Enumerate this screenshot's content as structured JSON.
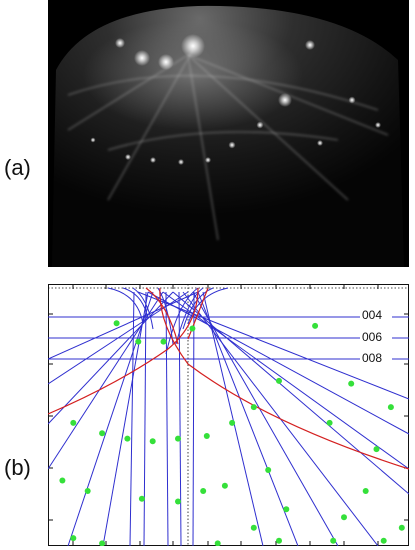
{
  "figure": {
    "panel_a_label": "(a)",
    "panel_b_label": "(b)"
  },
  "colors": {
    "arc_line": "#2f2fcf",
    "red_line": "#d42020",
    "dot": "#35e03a",
    "photo_bg": "#000000"
  },
  "chart_data": {
    "type": "scatter",
    "title": "",
    "xlabel": "",
    "ylabel": "",
    "grid": false,
    "reflection_labels": [
      "004",
      "006",
      "008"
    ],
    "spots": [
      {
        "x": 0.19,
        "y": 0.15
      },
      {
        "x": 0.25,
        "y": 0.22
      },
      {
        "x": 0.32,
        "y": 0.22
      },
      {
        "x": 0.4,
        "y": 0.17
      },
      {
        "x": 0.74,
        "y": 0.16
      },
      {
        "x": 0.64,
        "y": 0.37
      },
      {
        "x": 0.84,
        "y": 0.38
      },
      {
        "x": 0.95,
        "y": 0.47
      },
      {
        "x": 0.57,
        "y": 0.47
      },
      {
        "x": 0.51,
        "y": 0.53
      },
      {
        "x": 0.07,
        "y": 0.53
      },
      {
        "x": 0.15,
        "y": 0.57
      },
      {
        "x": 0.22,
        "y": 0.59
      },
      {
        "x": 0.29,
        "y": 0.6
      },
      {
        "x": 0.36,
        "y": 0.59
      },
      {
        "x": 0.44,
        "y": 0.58
      },
      {
        "x": 0.78,
        "y": 0.53
      },
      {
        "x": 0.91,
        "y": 0.63
      },
      {
        "x": 0.61,
        "y": 0.71
      },
      {
        "x": 0.49,
        "y": 0.77
      },
      {
        "x": 0.43,
        "y": 0.79
      },
      {
        "x": 0.36,
        "y": 0.83
      },
      {
        "x": 0.26,
        "y": 0.82
      },
      {
        "x": 0.11,
        "y": 0.79
      },
      {
        "x": 0.04,
        "y": 0.75
      },
      {
        "x": 0.88,
        "y": 0.79
      },
      {
        "x": 0.66,
        "y": 0.86
      },
      {
        "x": 0.82,
        "y": 0.89
      },
      {
        "x": 0.57,
        "y": 0.93
      },
      {
        "x": 0.98,
        "y": 0.93
      },
      {
        "x": 0.64,
        "y": 0.98
      },
      {
        "x": 0.47,
        "y": 0.99
      },
      {
        "x": 0.15,
        "y": 0.99
      },
      {
        "x": 0.07,
        "y": 0.97
      },
      {
        "x": 0.79,
        "y": 0.98
      },
      {
        "x": 0.93,
        "y": 0.98
      }
    ]
  }
}
